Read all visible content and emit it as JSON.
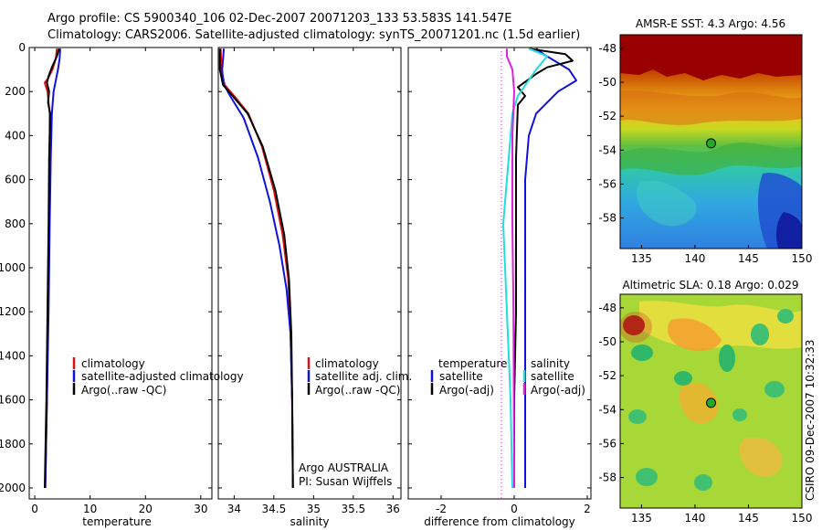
{
  "header": {
    "line1": "Argo profile: CS 5900340_106 02-Dec-2007 20071203_133 53.583S 141.547E",
    "line2": "Climatology: CARS2006. Satellite-adjusted climatology: synTS_20071201.nc (1.5d earlier)"
  },
  "side_label": "CSIRO 09-Dec-2007 10:32:33",
  "colors": {
    "climatology": "#dd1111",
    "satellite": "#1111dd",
    "argo": "#000000",
    "cyan": "#22dddd",
    "magenta": "#dd22dd",
    "marker": "#22aa22"
  },
  "chart_data": [
    {
      "type": "line",
      "panel": "temperature",
      "xlabel": "temperature",
      "xlim": [
        -1,
        32
      ],
      "ylim": [
        2050,
        0
      ],
      "xticks": [
        0,
        10,
        20,
        30
      ],
      "yticks": [
        0,
        200,
        400,
        600,
        800,
        1000,
        1200,
        1400,
        1600,
        1800,
        2000
      ],
      "legend": [
        "climatology",
        "satellite-adjusted climatology",
        "Argo(..raw -QC)"
      ],
      "series": [
        {
          "name": "climatology",
          "color": "#dd1111",
          "points": [
            [
              4.0,
              5
            ],
            [
              3.8,
              50
            ],
            [
              3.2,
              100
            ],
            [
              2.4,
              140
            ],
            [
              1.8,
              160
            ],
            [
              2.3,
              200
            ],
            [
              2.7,
              300
            ],
            [
              2.7,
              500
            ],
            [
              2.6,
              800
            ],
            [
              2.4,
              1200
            ],
            [
              2.2,
              1600
            ],
            [
              1.9,
              2000
            ]
          ]
        },
        {
          "name": "satellite-adjusted climatology",
          "color": "#1111dd",
          "points": [
            [
              4.6,
              5
            ],
            [
              4.5,
              50
            ],
            [
              4.2,
              100
            ],
            [
              3.8,
              150
            ],
            [
              3.4,
              200
            ],
            [
              3.1,
              300
            ],
            [
              2.9,
              500
            ],
            [
              2.7,
              800
            ],
            [
              2.5,
              1200
            ],
            [
              2.2,
              1600
            ],
            [
              1.9,
              2000
            ]
          ]
        },
        {
          "name": "Argo(..raw -QC)",
          "color": "#000000",
          "points": [
            [
              4.4,
              5
            ],
            [
              4.0,
              40
            ],
            [
              3.1,
              90
            ],
            [
              2.5,
              130
            ],
            [
              2.2,
              160
            ],
            [
              2.6,
              200
            ],
            [
              2.4,
              250
            ],
            [
              2.8,
              300
            ],
            [
              2.6,
              500
            ],
            [
              2.5,
              800
            ],
            [
              2.3,
              1200
            ],
            [
              2.1,
              1600
            ],
            [
              1.8,
              2000
            ]
          ]
        }
      ]
    },
    {
      "type": "line",
      "panel": "salinity",
      "xlabel": "salinity",
      "xlim": [
        33.8,
        36.1
      ],
      "ylim": [
        2050,
        0
      ],
      "xticks": [
        34,
        34.5,
        35,
        35.5,
        36
      ],
      "xticklabels": [
        "34",
        "34.5",
        "35",
        "35.5",
        "36"
      ],
      "legend": [
        "climatology",
        "satellite adj. clim.",
        "Argo(..raw -QC)"
      ],
      "annotations": [
        "Argo AUSTRALIA",
        "PI: Susan Wijffels"
      ],
      "series": [
        {
          "name": "climatology",
          "color": "#dd1111",
          "points": [
            [
              33.83,
              5
            ],
            [
              33.84,
              100
            ],
            [
              33.88,
              170
            ],
            [
              34.0,
              220
            ],
            [
              34.18,
              300
            ],
            [
              34.35,
              450
            ],
            [
              34.5,
              650
            ],
            [
              34.61,
              850
            ],
            [
              34.68,
              1050
            ],
            [
              34.71,
              1300
            ],
            [
              34.73,
              1600
            ],
            [
              34.74,
              2000
            ]
          ]
        },
        {
          "name": "satellite adj. clim.",
          "color": "#1111dd",
          "points": [
            [
              33.87,
              5
            ],
            [
              33.85,
              100
            ],
            [
              33.86,
              160
            ],
            [
              33.95,
              220
            ],
            [
              34.12,
              320
            ],
            [
              34.3,
              500
            ],
            [
              34.45,
              700
            ],
            [
              34.57,
              900
            ],
            [
              34.66,
              1100
            ],
            [
              34.71,
              1300
            ],
            [
              34.73,
              1600
            ],
            [
              34.74,
              2000
            ]
          ]
        },
        {
          "name": "Argo(..raw -QC)",
          "color": "#000000",
          "points": [
            [
              33.82,
              5
            ],
            [
              33.82,
              100
            ],
            [
              33.86,
              170
            ],
            [
              33.98,
              220
            ],
            [
              34.17,
              300
            ],
            [
              34.36,
              450
            ],
            [
              34.52,
              650
            ],
            [
              34.63,
              850
            ],
            [
              34.69,
              1050
            ],
            [
              34.72,
              1300
            ],
            [
              34.73,
              1600
            ],
            [
              34.74,
              2000
            ]
          ]
        }
      ]
    },
    {
      "type": "line",
      "panel": "difference",
      "xlabel": "difference from climatology",
      "xlim": [
        -2.9,
        2.1
      ],
      "ylim": [
        2050,
        0
      ],
      "xticks": [
        -2,
        0,
        2
      ],
      "legend_temperature_title": "temperature",
      "legend_temperature": [
        "satellite",
        "Argo(-adj)"
      ],
      "legend_salinity_title": "salinity",
      "legend_salinity": [
        "satellite",
        "Argo(-adj)"
      ],
      "series": [
        {
          "name": "temperature satellite",
          "color": "#1111dd",
          "points": [
            [
              0.6,
              5
            ],
            [
              0.8,
              30
            ],
            [
              1.2,
              70
            ],
            [
              1.5,
              100
            ],
            [
              1.7,
              150
            ],
            [
              1.2,
              200
            ],
            [
              0.6,
              300
            ],
            [
              0.4,
              400
            ],
            [
              0.3,
              600
            ],
            [
              0.3,
              800
            ],
            [
              0.3,
              1200
            ],
            [
              0.3,
              1600
            ],
            [
              0.3,
              2000
            ]
          ]
        },
        {
          "name": "temperature Argo(-adj)",
          "color": "#000000",
          "points": [
            [
              0.4,
              5
            ],
            [
              1.4,
              30
            ],
            [
              1.6,
              60
            ],
            [
              0.9,
              90
            ],
            [
              0.6,
              120
            ],
            [
              0.1,
              180
            ],
            [
              0.3,
              220
            ],
            [
              0.1,
              260
            ],
            [
              0.05,
              500
            ],
            [
              0.05,
              800
            ],
            [
              0.05,
              1200
            ],
            [
              0.0,
              1600
            ],
            [
              0.0,
              2000
            ]
          ]
        },
        {
          "name": "salinity satellite",
          "color": "#22dddd",
          "points": [
            [
              0.4,
              5
            ],
            [
              0.9,
              40
            ],
            [
              0.6,
              100
            ],
            [
              0.35,
              160
            ],
            [
              0.1,
              220
            ],
            [
              -0.05,
              300
            ],
            [
              -0.15,
              500
            ],
            [
              -0.3,
              800
            ],
            [
              -0.2,
              1200
            ],
            [
              -0.1,
              1600
            ],
            [
              -0.05,
              2000
            ]
          ]
        },
        {
          "name": "salinity Argo(-adj)",
          "color": "#dd22dd",
          "points": [
            [
              -0.2,
              5
            ],
            [
              -0.2,
              40
            ],
            [
              -0.05,
              100
            ],
            [
              0.0,
              200
            ],
            [
              -0.05,
              400
            ],
            [
              -0.05,
              800
            ],
            [
              -0.02,
              1200
            ],
            [
              0.0,
              2000
            ]
          ]
        }
      ]
    },
    {
      "type": "heatmap",
      "panel": "AMSR-E SST",
      "title": "AMSR-E SST: 4.3 Argo: 4.56",
      "xlim": [
        133,
        150
      ],
      "ylim": [
        -59.8,
        -47.2
      ],
      "xticks": [
        135,
        140,
        145,
        150
      ],
      "yticks": [
        -48,
        -50,
        -52,
        -54,
        -56,
        -58
      ],
      "marker": [
        141.5,
        -53.6
      ]
    },
    {
      "type": "heatmap",
      "panel": "Altimetric SLA",
      "title": "Altimetric SLA: 0.18 Argo: 0.029",
      "xlim": [
        133,
        150
      ],
      "ylim": [
        -59.8,
        -47.2
      ],
      "xticks": [
        135,
        140,
        145,
        150
      ],
      "yticks": [
        -48,
        -50,
        -52,
        -54,
        -56,
        -58
      ],
      "marker": [
        141.5,
        -53.6
      ]
    }
  ]
}
